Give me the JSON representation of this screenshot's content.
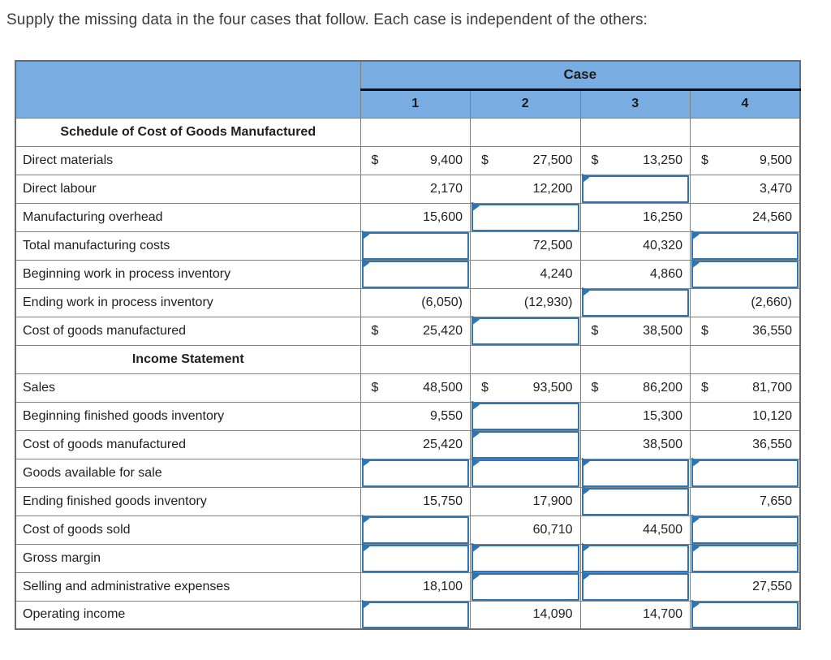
{
  "page_title": "Supply the missing data in the four cases that follow. Each case is independent of the others:",
  "colors": {
    "header_blue": "#79ade2",
    "input_border_blue": "#2e75b6",
    "grid_line_gray": "#808080"
  },
  "table": {
    "case_header": "Case",
    "case_columns": [
      "1",
      "2",
      "3",
      "4"
    ],
    "rows": [
      {
        "type": "section",
        "label": "Schedule of Cost of Goods Manufactured"
      },
      {
        "type": "data",
        "label": "Direct materials",
        "cells": [
          {
            "t": "value",
            "dollar": "$",
            "v": "9,400"
          },
          {
            "t": "value",
            "dollar": "$",
            "v": "27,500"
          },
          {
            "t": "value",
            "dollar": "$",
            "v": "13,250"
          },
          {
            "t": "value",
            "dollar": "$",
            "v": "9,500"
          }
        ]
      },
      {
        "type": "data",
        "label": "Direct labour",
        "cells": [
          {
            "t": "value",
            "v": "2,170"
          },
          {
            "t": "value",
            "v": "12,200"
          },
          {
            "t": "input"
          },
          {
            "t": "value",
            "v": "3,470"
          }
        ]
      },
      {
        "type": "data",
        "label": "Manufacturing overhead",
        "cells": [
          {
            "t": "value",
            "v": "15,600"
          },
          {
            "t": "input"
          },
          {
            "t": "value",
            "v": "16,250"
          },
          {
            "t": "value",
            "v": "24,560"
          }
        ]
      },
      {
        "type": "data",
        "label": "Total manufacturing costs",
        "cells": [
          {
            "t": "input"
          },
          {
            "t": "value",
            "v": "72,500"
          },
          {
            "t": "value",
            "v": "40,320"
          },
          {
            "t": "input"
          }
        ]
      },
      {
        "type": "data",
        "label": "Beginning work in process inventory",
        "cells": [
          {
            "t": "input"
          },
          {
            "t": "value",
            "v": "4,240"
          },
          {
            "t": "value",
            "v": "4,860"
          },
          {
            "t": "input"
          }
        ]
      },
      {
        "type": "data",
        "label": "Ending work in process inventory",
        "cells": [
          {
            "t": "value",
            "v": "(6,050)"
          },
          {
            "t": "value",
            "v": "(12,930)"
          },
          {
            "t": "input"
          },
          {
            "t": "value",
            "v": "(2,660)"
          }
        ]
      },
      {
        "type": "data",
        "label": "Cost of goods manufactured",
        "cells": [
          {
            "t": "value",
            "dollar": "$",
            "v": "25,420"
          },
          {
            "t": "input"
          },
          {
            "t": "value",
            "dollar": "$",
            "v": "38,500"
          },
          {
            "t": "value",
            "dollar": "$",
            "v": "36,550"
          }
        ]
      },
      {
        "type": "section",
        "label": "Income Statement"
      },
      {
        "type": "data",
        "label": "Sales",
        "cells": [
          {
            "t": "value",
            "dollar": "$",
            "v": "48,500"
          },
          {
            "t": "value",
            "dollar": "$",
            "v": "93,500"
          },
          {
            "t": "value",
            "dollar": "$",
            "v": "86,200"
          },
          {
            "t": "value",
            "dollar": "$",
            "v": "81,700"
          }
        ]
      },
      {
        "type": "data",
        "label": "Beginning finished goods inventory",
        "cells": [
          {
            "t": "value",
            "v": "9,550"
          },
          {
            "t": "input"
          },
          {
            "t": "value",
            "v": "15,300"
          },
          {
            "t": "value",
            "v": "10,120"
          }
        ]
      },
      {
        "type": "data",
        "label": "Cost of goods manufactured",
        "cells": [
          {
            "t": "value",
            "v": "25,420"
          },
          {
            "t": "input"
          },
          {
            "t": "value",
            "v": "38,500"
          },
          {
            "t": "value",
            "v": "36,550"
          }
        ]
      },
      {
        "type": "data",
        "label": "Goods available for sale",
        "cells": [
          {
            "t": "input"
          },
          {
            "t": "input"
          },
          {
            "t": "input"
          },
          {
            "t": "input"
          }
        ]
      },
      {
        "type": "data",
        "label": "Ending finished goods inventory",
        "cells": [
          {
            "t": "value",
            "v": "15,750"
          },
          {
            "t": "value",
            "v": "17,900"
          },
          {
            "t": "input"
          },
          {
            "t": "value",
            "v": "7,650"
          }
        ]
      },
      {
        "type": "data",
        "label": "Cost of goods sold",
        "cells": [
          {
            "t": "input"
          },
          {
            "t": "value",
            "v": "60,710"
          },
          {
            "t": "value",
            "v": "44,500"
          },
          {
            "t": "input"
          }
        ]
      },
      {
        "type": "data",
        "label": "Gross margin",
        "cells": [
          {
            "t": "input"
          },
          {
            "t": "input"
          },
          {
            "t": "input"
          },
          {
            "t": "input"
          }
        ]
      },
      {
        "type": "data",
        "label": "Selling and administrative expenses",
        "cells": [
          {
            "t": "value",
            "v": "18,100"
          },
          {
            "t": "input"
          },
          {
            "t": "input"
          },
          {
            "t": "value",
            "v": "27,550"
          }
        ]
      },
      {
        "type": "data",
        "label": "Operating income",
        "cells": [
          {
            "t": "input"
          },
          {
            "t": "value",
            "v": "14,090"
          },
          {
            "t": "value",
            "v": "14,700"
          },
          {
            "t": "input"
          }
        ]
      }
    ]
  }
}
